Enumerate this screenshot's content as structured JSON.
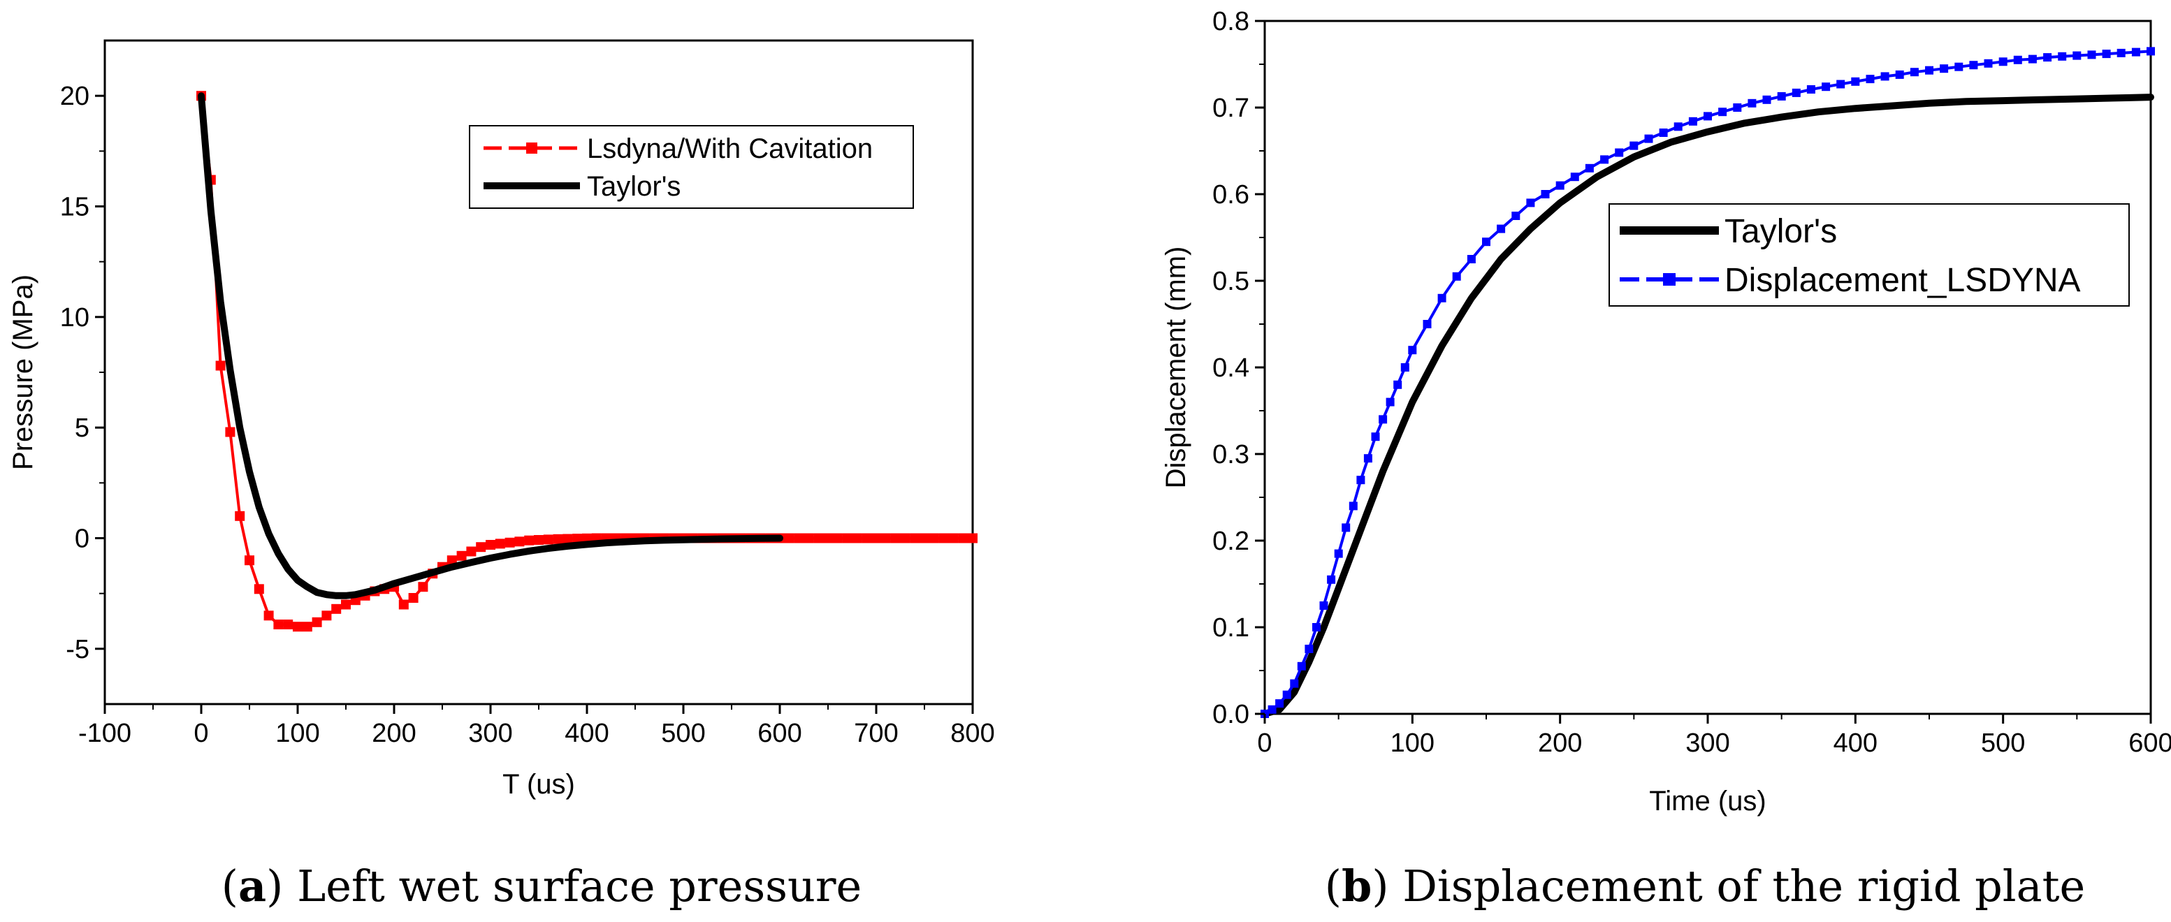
{
  "colors": {
    "lsdyna_pressure": "#ff0000",
    "lsdyna_disp": "#0000ff",
    "taylor": "#000000"
  },
  "captions": {
    "a": {
      "open": "(",
      "letter": "a",
      "text": ") Left wet surface pressure"
    },
    "b": {
      "open": "(",
      "letter": "b",
      "text": ") Displacement of the rigid plate"
    }
  },
  "chart_data": [
    {
      "type": "line",
      "title": "",
      "xlabel": "T (us)",
      "ylabel": "Pressure (MPa)",
      "xlim": [
        -100,
        800
      ],
      "ylim": [
        -7.5,
        22.5
      ],
      "xticks": [
        -100,
        0,
        100,
        200,
        300,
        400,
        500,
        600,
        700,
        800
      ],
      "yticks": [
        -5,
        0,
        5,
        10,
        15,
        20
      ],
      "grid": false,
      "legend_position": "top-right",
      "series": [
        {
          "name": "Lsdyna/With Cavitation",
          "style": "dashed-square-markers",
          "color": "#ff0000",
          "x": [
            0,
            10,
            20,
            30,
            40,
            50,
            60,
            70,
            80,
            90,
            100,
            110,
            120,
            130,
            140,
            150,
            160,
            170,
            180,
            190,
            200,
            210,
            220,
            230,
            240,
            250,
            260,
            270,
            280,
            290,
            300,
            310,
            320,
            330,
            340,
            350,
            360,
            370,
            380,
            390,
            400,
            410,
            420,
            430,
            440,
            450,
            460,
            470,
            480,
            490,
            500,
            510,
            520,
            530,
            540,
            550,
            560,
            570,
            580,
            590,
            600,
            610,
            620,
            630,
            640,
            650,
            660,
            670,
            680,
            690,
            700,
            710,
            720,
            730,
            740,
            750,
            760,
            770,
            780,
            790,
            800
          ],
          "y": [
            20,
            16.2,
            7.8,
            4.8,
            1.0,
            -1.0,
            -2.3,
            -3.5,
            -3.9,
            -3.9,
            -4.0,
            -4.0,
            -3.8,
            -3.5,
            -3.2,
            -3.0,
            -2.8,
            -2.6,
            -2.4,
            -2.3,
            -2.2,
            -3.0,
            -2.7,
            -2.2,
            -1.6,
            -1.3,
            -1.0,
            -0.8,
            -0.6,
            -0.4,
            -0.3,
            -0.25,
            -0.2,
            -0.15,
            -0.1,
            -0.08,
            -0.06,
            -0.04,
            -0.03,
            -0.02,
            -0.01,
            0,
            0,
            0,
            0,
            0,
            0,
            0,
            0,
            0,
            0,
            0,
            0,
            0,
            0,
            0,
            0,
            0,
            0,
            0,
            0,
            0,
            0,
            0,
            0,
            0,
            0,
            0,
            0,
            0,
            0,
            0,
            0,
            0,
            0,
            0,
            0,
            0,
            0,
            0,
            0
          ]
        },
        {
          "name": "Taylor's",
          "style": "solid-thick",
          "color": "#000000",
          "x": [
            0,
            10,
            20,
            30,
            40,
            50,
            60,
            70,
            80,
            90,
            100,
            110,
            120,
            130,
            140,
            150,
            160,
            170,
            180,
            190,
            200,
            220,
            240,
            260,
            280,
            300,
            320,
            340,
            360,
            380,
            400,
            420,
            440,
            460,
            480,
            500,
            520,
            540,
            560,
            580,
            600
          ],
          "y": [
            20,
            14.8,
            10.7,
            7.6,
            5.0,
            3.0,
            1.4,
            0.2,
            -0.7,
            -1.4,
            -1.9,
            -2.2,
            -2.45,
            -2.55,
            -2.6,
            -2.6,
            -2.55,
            -2.45,
            -2.35,
            -2.2,
            -2.05,
            -1.8,
            -1.55,
            -1.3,
            -1.1,
            -0.9,
            -0.73,
            -0.58,
            -0.46,
            -0.36,
            -0.28,
            -0.21,
            -0.16,
            -0.12,
            -0.09,
            -0.07,
            -0.05,
            -0.03,
            -0.02,
            -0.01,
            0
          ]
        }
      ]
    },
    {
      "type": "line",
      "title": "",
      "xlabel": "Time (us)",
      "ylabel": "Displacement (mm)",
      "xlim": [
        0,
        600
      ],
      "ylim": [
        0,
        0.8
      ],
      "xticks": [
        0,
        100,
        200,
        300,
        400,
        500,
        600
      ],
      "yticks": [
        0.0,
        0.1,
        0.2,
        0.3,
        0.4,
        0.5,
        0.6,
        0.7,
        0.8
      ],
      "grid": false,
      "legend_position": "middle-right",
      "series": [
        {
          "name": "Taylor's",
          "style": "solid-thick",
          "color": "#000000",
          "x": [
            0,
            10,
            20,
            30,
            40,
            50,
            60,
            70,
            80,
            90,
            100,
            120,
            140,
            160,
            180,
            200,
            225,
            250,
            275,
            300,
            325,
            350,
            375,
            400,
            425,
            450,
            475,
            500,
            525,
            550,
            575,
            600
          ],
          "y": [
            0,
            0.005,
            0.025,
            0.06,
            0.1,
            0.145,
            0.19,
            0.235,
            0.28,
            0.32,
            0.36,
            0.425,
            0.48,
            0.525,
            0.56,
            0.59,
            0.62,
            0.643,
            0.66,
            0.672,
            0.682,
            0.689,
            0.695,
            0.699,
            0.702,
            0.705,
            0.707,
            0.708,
            0.709,
            0.71,
            0.711,
            0.712
          ]
        },
        {
          "name": "Displacement_LSDYNA",
          "style": "dashed-square-markers",
          "color": "#0000ff",
          "x": [
            0,
            5,
            10,
            15,
            20,
            25,
            30,
            35,
            40,
            45,
            50,
            55,
            60,
            65,
            70,
            75,
            80,
            85,
            90,
            95,
            100,
            110,
            120,
            130,
            140,
            150,
            160,
            170,
            180,
            190,
            200,
            210,
            220,
            230,
            240,
            250,
            260,
            270,
            280,
            290,
            300,
            310,
            320,
            330,
            340,
            350,
            360,
            370,
            380,
            390,
            400,
            410,
            420,
            430,
            440,
            450,
            460,
            470,
            480,
            490,
            500,
            510,
            520,
            530,
            540,
            550,
            560,
            570,
            580,
            590,
            600
          ],
          "y": [
            0,
            0.005,
            0.012,
            0.022,
            0.035,
            0.055,
            0.075,
            0.1,
            0.125,
            0.155,
            0.185,
            0.215,
            0.24,
            0.27,
            0.295,
            0.32,
            0.34,
            0.36,
            0.38,
            0.4,
            0.42,
            0.45,
            0.48,
            0.505,
            0.525,
            0.545,
            0.56,
            0.575,
            0.59,
            0.6,
            0.61,
            0.62,
            0.63,
            0.64,
            0.648,
            0.656,
            0.664,
            0.671,
            0.678,
            0.684,
            0.69,
            0.695,
            0.7,
            0.705,
            0.709,
            0.713,
            0.717,
            0.721,
            0.724,
            0.727,
            0.73,
            0.733,
            0.736,
            0.738,
            0.741,
            0.743,
            0.745,
            0.747,
            0.749,
            0.751,
            0.753,
            0.755,
            0.756,
            0.758,
            0.759,
            0.76,
            0.761,
            0.762,
            0.763,
            0.764,
            0.765
          ]
        }
      ]
    }
  ]
}
